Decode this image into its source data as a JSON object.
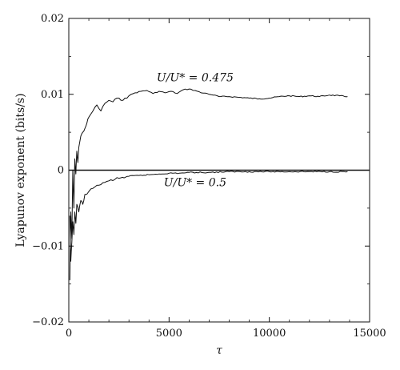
{
  "chart_data": {
    "type": "line",
    "xlabel": "τ",
    "ylabel": "Lyapunov exponent (bits/s)",
    "xlim": [
      0,
      15000
    ],
    "ylim": [
      -0.02,
      0.02
    ],
    "xticks": [
      0,
      5000,
      10000,
      15000
    ],
    "xtick_labels": [
      "0",
      "5000",
      "10000",
      "15000"
    ],
    "yticks": [
      -0.02,
      -0.01,
      0,
      0.01,
      0.02
    ],
    "ytick_labels": [
      "−0.02",
      "−0.01",
      "0",
      "0.01",
      "0.02"
    ],
    "grid": false,
    "reference_line": 0,
    "annotations": [
      {
        "text": "U/U* = 0.475",
        "x": 6300,
        "y": 0.0117
      },
      {
        "text": "U/U* = 0.5",
        "x": 6300,
        "y": -0.0021
      }
    ],
    "series": [
      {
        "x": [
          50,
          100,
          150,
          200,
          250,
          300,
          350,
          400,
          450,
          500,
          600,
          700,
          800,
          900,
          1000,
          1200,
          1400,
          1600,
          1800,
          2000,
          2200,
          2400,
          2600,
          2800,
          3000,
          3300,
          3600,
          3900,
          4200,
          4500,
          4800,
          5100,
          5400,
          5700,
          6000,
          6300,
          6600,
          6900,
          7200,
          7500,
          8000,
          8500,
          9000,
          9500,
          10000,
          10500,
          11000,
          11500,
          12000,
          12500,
          13000,
          13500,
          13900
        ],
        "values": [
          -0.0145,
          -0.0055,
          -0.009,
          0.0,
          -0.005,
          0.0015,
          -0.0005,
          0.0025,
          0.001,
          0.003,
          0.0045,
          0.005,
          0.0055,
          0.0062,
          0.007,
          0.0078,
          0.0086,
          0.0078,
          0.0088,
          0.0092,
          0.009,
          0.0095,
          0.0092,
          0.0095,
          0.0098,
          0.0102,
          0.0104,
          0.0105,
          0.0101,
          0.0104,
          0.0102,
          0.0104,
          0.0101,
          0.0106,
          0.0107,
          0.0105,
          0.0102,
          0.0101,
          0.0099,
          0.0097,
          0.0097,
          0.0096,
          0.0095,
          0.0094,
          0.0095,
          0.0097,
          0.0098,
          0.0097,
          0.0098,
          0.0097,
          0.0099,
          0.0098,
          0.0097
        ]
      },
      {
        "x": [
          50,
          100,
          150,
          200,
          250,
          300,
          350,
          400,
          500,
          600,
          700,
          800,
          1000,
          1200,
          1400,
          1600,
          1800,
          2000,
          2300,
          2600,
          3000,
          3500,
          4000,
          4500,
          5000,
          5500,
          6000,
          7000,
          8000,
          9000,
          10000,
          11000,
          12000,
          13000,
          13900
        ],
        "values": [
          -0.006,
          -0.012,
          -0.0095,
          -0.0068,
          -0.0085,
          -0.0055,
          -0.007,
          -0.0045,
          -0.0055,
          -0.004,
          -0.0045,
          -0.0032,
          -0.0028,
          -0.0024,
          -0.002,
          -0.0019,
          -0.0016,
          -0.0014,
          -0.0012,
          -0.001,
          -0.0008,
          -0.0007,
          -0.0006,
          -0.0005,
          -0.0004,
          -0.0004,
          -0.0003,
          -0.0003,
          -0.0002,
          -0.0002,
          -0.0002,
          -0.0002,
          -0.0002,
          -0.0002,
          -0.0002
        ]
      }
    ]
  }
}
